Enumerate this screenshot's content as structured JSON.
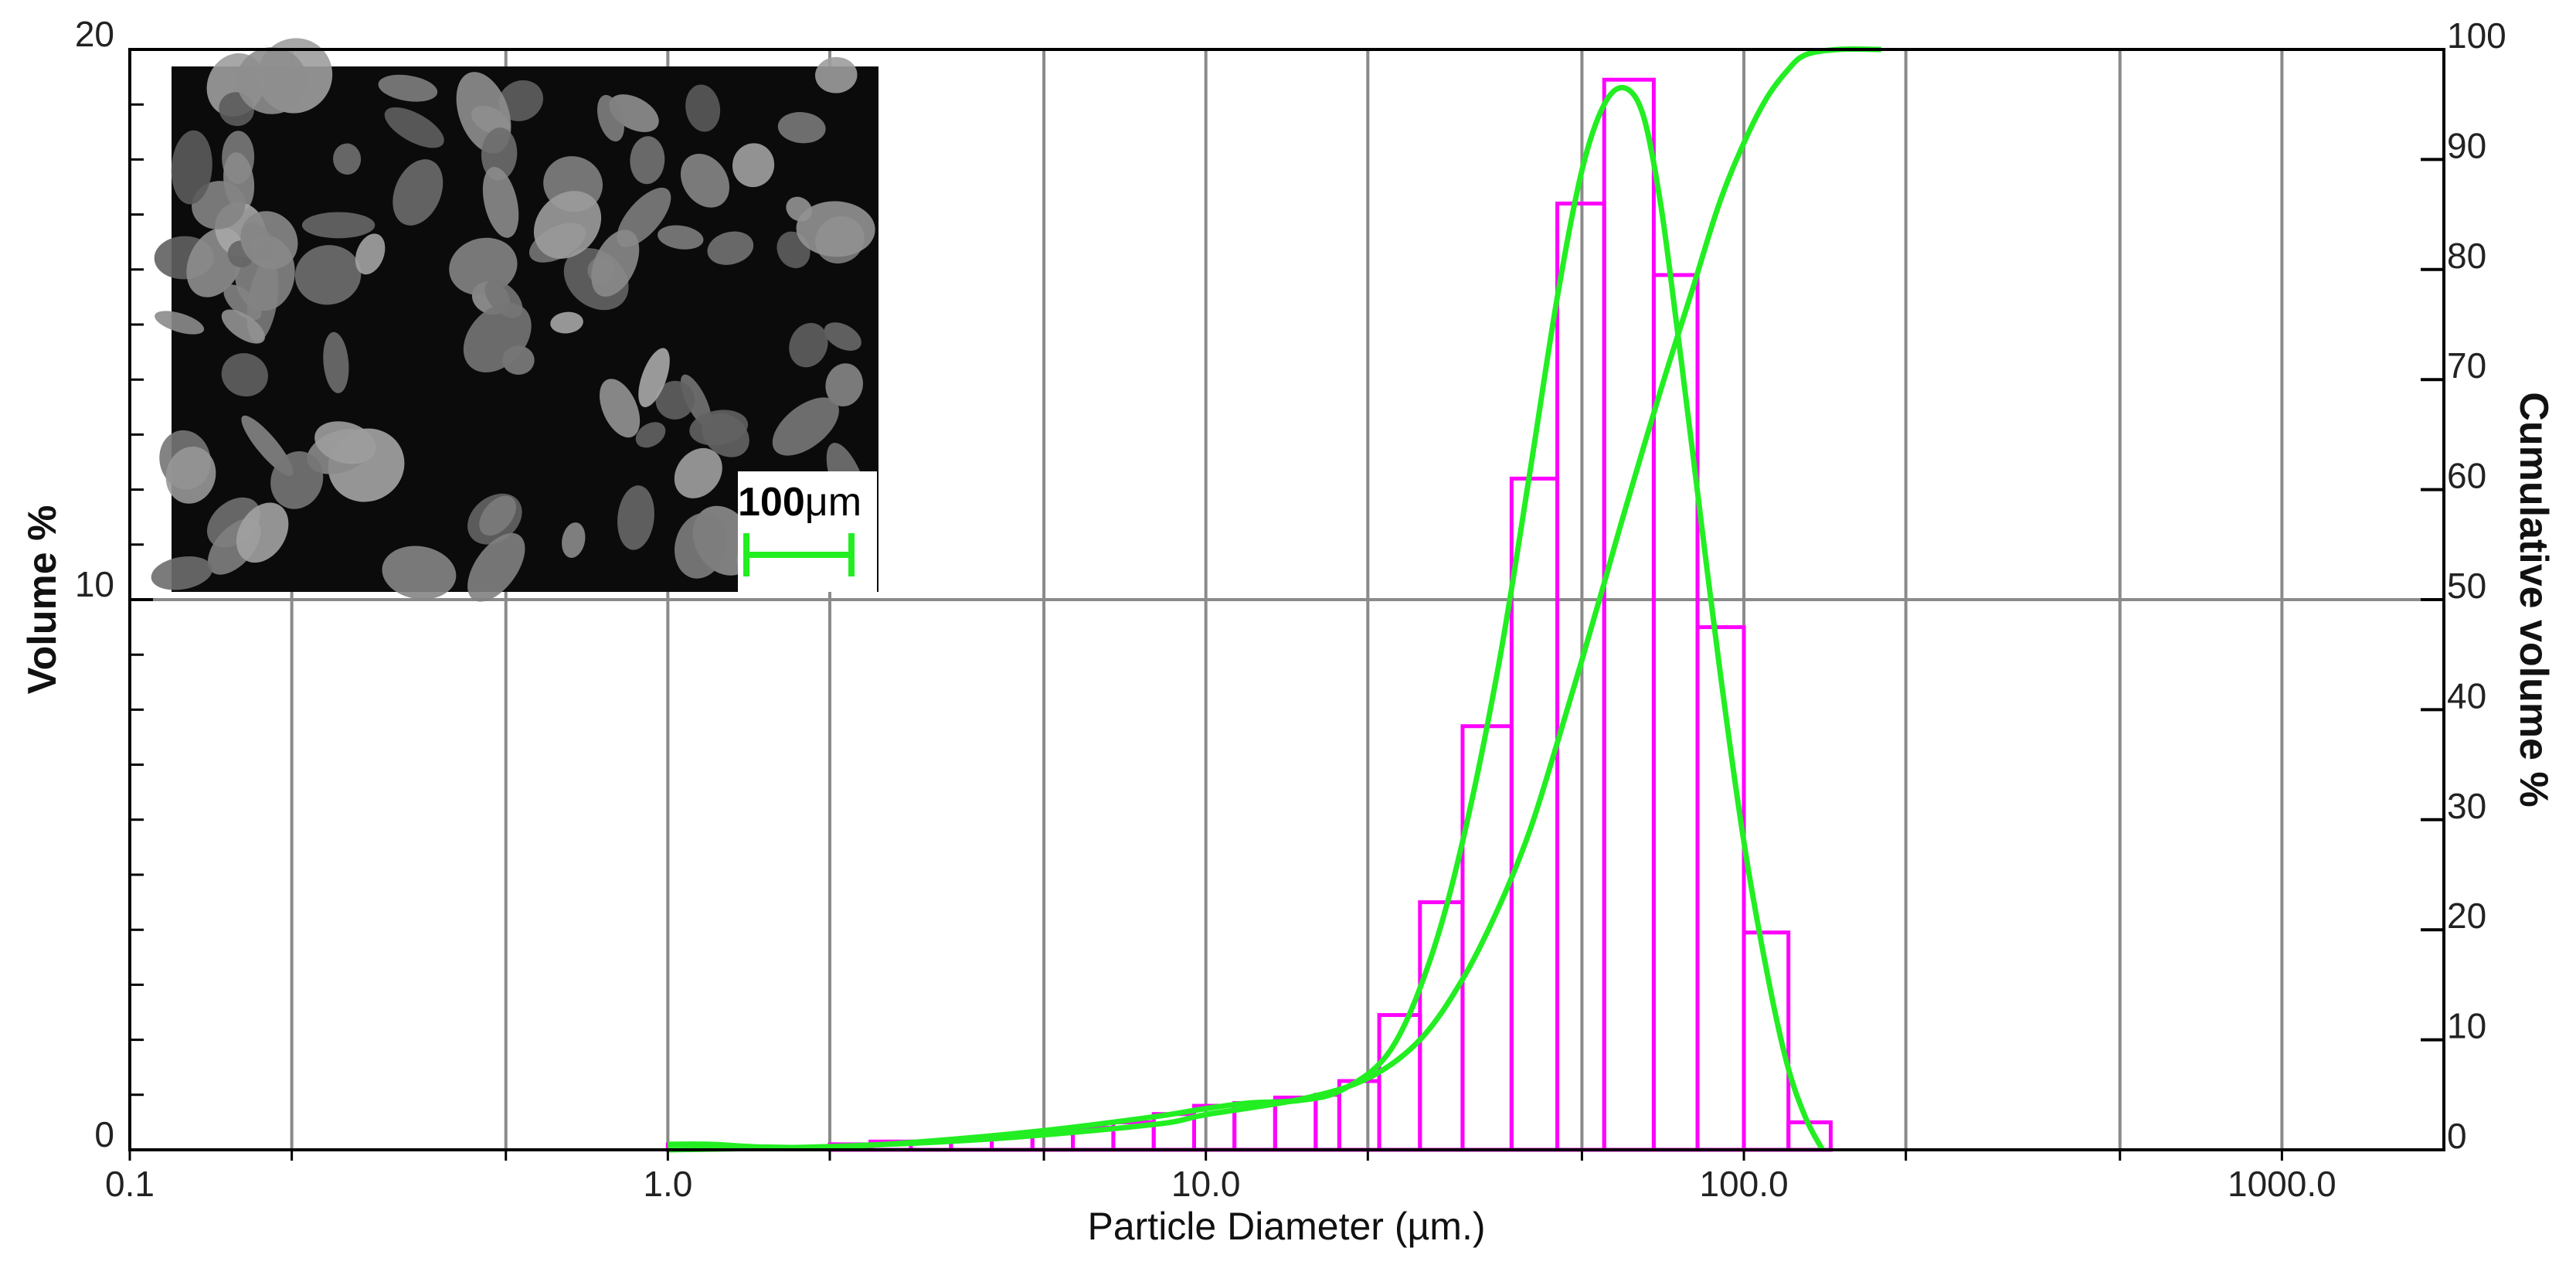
{
  "chart_data": {
    "type": "bar",
    "title": "",
    "xlabel": "Particle Diameter (µm.)",
    "ylabel_left": "Volume %",
    "ylabel_right": "Cumulative volume %",
    "x_scale": "log",
    "xlim": [
      0.1,
      2000
    ],
    "ylim_left": [
      0,
      20
    ],
    "ylim_right": [
      0,
      100
    ],
    "x_tick_labels": [
      "0.1",
      "1.0",
      "10.0",
      "100.0",
      "1000.0"
    ],
    "x_tick_values": [
      0.1,
      1,
      10,
      100,
      1000
    ],
    "x_minor_gridlines": [
      0.2,
      0.5,
      1,
      2,
      5,
      10,
      20,
      50,
      100,
      200,
      500,
      1000
    ],
    "y_left_tick_labels": [
      "0",
      "10",
      "20"
    ],
    "y_left_tick_values": [
      0,
      10,
      20
    ],
    "y_right_tick_labels": [
      "0",
      "10",
      "20",
      "30",
      "40",
      "50",
      "60",
      "70",
      "80",
      "90",
      "100"
    ],
    "y_right_tick_values": [
      0,
      10,
      20,
      30,
      40,
      50,
      60,
      70,
      80,
      90,
      100
    ],
    "grid": true,
    "histogram_bins": [
      {
        "x0": 1.0,
        "x1": 1.19,
        "value": 0.1
      },
      {
        "x0": 2.0,
        "x1": 2.38,
        "value": 0.1
      },
      {
        "x0": 2.38,
        "x1": 2.83,
        "value": 0.15
      },
      {
        "x0": 2.83,
        "x1": 3.36,
        "value": 0.15
      },
      {
        "x0": 3.36,
        "x1": 4.0,
        "value": 0.2
      },
      {
        "x0": 4.0,
        "x1": 4.76,
        "value": 0.25
      },
      {
        "x0": 4.76,
        "x1": 5.66,
        "value": 0.3
      },
      {
        "x0": 5.66,
        "x1": 6.73,
        "value": 0.4
      },
      {
        "x0": 6.73,
        "x1": 8.0,
        "value": 0.5
      },
      {
        "x0": 8.0,
        "x1": 9.51,
        "value": 0.65
      },
      {
        "x0": 9.51,
        "x1": 11.3,
        "value": 0.8
      },
      {
        "x0": 11.3,
        "x1": 13.45,
        "value": 0.85
      },
      {
        "x0": 13.45,
        "x1": 16.0,
        "value": 0.95
      },
      {
        "x0": 16.0,
        "x1": 17.7,
        "value": 1.0
      },
      {
        "x0": 17.7,
        "x1": 21.0,
        "value": 1.25
      },
      {
        "x0": 21.0,
        "x1": 25.0,
        "value": 2.45
      },
      {
        "x0": 25.0,
        "x1": 30.0,
        "value": 4.5
      },
      {
        "x0": 30.0,
        "x1": 37.0,
        "value": 7.7
      },
      {
        "x0": 37.0,
        "x1": 45.0,
        "value": 12.2
      },
      {
        "x0": 45.0,
        "x1": 55.0,
        "value": 17.2
      },
      {
        "x0": 55.0,
        "x1": 68.0,
        "value": 19.45
      },
      {
        "x0": 68.0,
        "x1": 82.0,
        "value": 15.9
      },
      {
        "x0": 82.0,
        "x1": 100.0,
        "value": 9.5
      },
      {
        "x0": 100.0,
        "x1": 121.0,
        "value": 3.95
      },
      {
        "x0": 121.0,
        "x1": 145.0,
        "value": 0.5
      }
    ],
    "series": [
      {
        "type": "line",
        "axis": "left",
        "x": [
          1.0,
          1.2,
          1.5,
          2.0,
          3.0,
          5.0,
          8.0,
          10.0,
          12.0,
          15.0,
          18.0,
          22.0,
          26.0,
          30.0,
          35.0,
          40.0,
          45.0,
          50.0,
          55.0,
          60.0,
          65.0,
          70.0,
          75.0,
          80.0,
          90.0,
          100.0,
          110.0,
          120.0,
          130.0,
          140.0
        ],
        "values": [
          0.1,
          0.1,
          0.05,
          0.05,
          0.15,
          0.35,
          0.6,
          0.75,
          0.85,
          0.9,
          1.1,
          1.8,
          3.4,
          5.6,
          8.8,
          12.3,
          15.5,
          17.8,
          19.0,
          19.3,
          18.8,
          17.2,
          15.0,
          12.8,
          8.8,
          5.6,
          3.3,
          1.6,
          0.6,
          0.0
        ]
      },
      {
        "type": "line",
        "axis": "right",
        "x": [
          1.0,
          2.0,
          4.0,
          8.0,
          10.0,
          15.0,
          20.0,
          25.0,
          30.0,
          35.0,
          40.0,
          45.0,
          50.0,
          55.0,
          60.0,
          70.0,
          80.0,
          90.0,
          100.0,
          110.0,
          120.0,
          130.0,
          150.0,
          180.0
        ],
        "values": [
          0.0,
          0.3,
          1.0,
          2.3,
          3.2,
          4.6,
          6.5,
          10.0,
          15.5,
          22.0,
          29.0,
          37.0,
          44.5,
          51.5,
          58.0,
          69.0,
          78.0,
          86.0,
          91.5,
          95.5,
          98.0,
          99.5,
          100.0,
          100.0
        ]
      }
    ],
    "inset": {
      "scale_bar_number": "100",
      "scale_bar_unit": "μm"
    }
  },
  "colors": {
    "bars": "#ff00ff",
    "curves": "#22ee22",
    "grid": "#8a8a8a",
    "axis": "#000000",
    "scale_bar": "#22ee22"
  }
}
